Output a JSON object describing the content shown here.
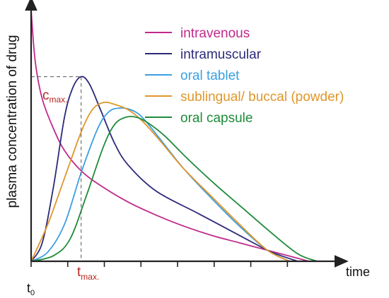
{
  "chart_data": {
    "type": "line",
    "xlabel": "time",
    "ylabel": "plasma concentration of drug",
    "x_ticks": [
      "t",
      "0"
    ],
    "xlim": [
      0,
      11.2
    ],
    "ylim": [
      0,
      1.4
    ],
    "grid": false,
    "legend_position": "top-right",
    "annotations": {
      "cmax": {
        "text": "c",
        "sub": "max.",
        "y": 1.0
      },
      "tmax": {
        "text": "t",
        "sub": "max.",
        "x": 1.8
      }
    },
    "series": [
      {
        "name": "intravenous",
        "color": "#c02a8a",
        "x": [
          0,
          0.15,
          0.4,
          0.8,
          1.2,
          1.8,
          2.5,
          3.5,
          4.5,
          5.5,
          6.5,
          7.5,
          8.5,
          9.5,
          10.0
        ],
        "y": [
          1.36,
          1.08,
          0.88,
          0.72,
          0.6,
          0.49,
          0.41,
          0.32,
          0.25,
          0.19,
          0.14,
          0.1,
          0.06,
          0.02,
          0.0
        ]
      },
      {
        "name": "intramuscular",
        "color": "#2b2a7a",
        "x": [
          0,
          0.4,
          0.8,
          1.2,
          1.5,
          1.8,
          2.1,
          2.5,
          3.0,
          3.5,
          4.5,
          6.0,
          7.5,
          8.5,
          9.0,
          9.6
        ],
        "y": [
          0,
          0.1,
          0.4,
          0.78,
          0.94,
          1.0,
          0.96,
          0.82,
          0.64,
          0.52,
          0.38,
          0.26,
          0.14,
          0.06,
          0.03,
          0.0
        ]
      },
      {
        "name": "oral tablet",
        "color": "#3a9fe0",
        "x": [
          0,
          0.6,
          1.2,
          1.8,
          2.4,
          2.8,
          3.2,
          3.6,
          4.0,
          4.6,
          5.5,
          6.5,
          7.5,
          8.5,
          9.3
        ],
        "y": [
          0,
          0.05,
          0.2,
          0.48,
          0.72,
          0.81,
          0.83,
          0.82,
          0.78,
          0.67,
          0.5,
          0.34,
          0.19,
          0.06,
          0.0
        ]
      },
      {
        "name": "sublingual/ buccal (powder)",
        "color": "#e0962a",
        "x": [
          0,
          0.6,
          1.2,
          1.8,
          2.2,
          2.6,
          3.0,
          3.5,
          4.0,
          4.6,
          5.5,
          6.5,
          7.5,
          8.5,
          9.3
        ],
        "y": [
          0,
          0.2,
          0.45,
          0.7,
          0.82,
          0.86,
          0.85,
          0.82,
          0.76,
          0.66,
          0.5,
          0.35,
          0.2,
          0.06,
          0.0
        ]
      },
      {
        "name": "oral capsule",
        "color": "#1f8b3a",
        "x": [
          0,
          0.8,
          1.4,
          2.0,
          2.6,
          3.0,
          3.4,
          3.8,
          4.2,
          4.8,
          5.6,
          6.6,
          7.6,
          8.6,
          9.6,
          10.3
        ],
        "y": [
          0,
          0.03,
          0.12,
          0.36,
          0.62,
          0.74,
          0.78,
          0.78,
          0.75,
          0.68,
          0.56,
          0.42,
          0.29,
          0.16,
          0.04,
          0.0
        ]
      }
    ]
  }
}
